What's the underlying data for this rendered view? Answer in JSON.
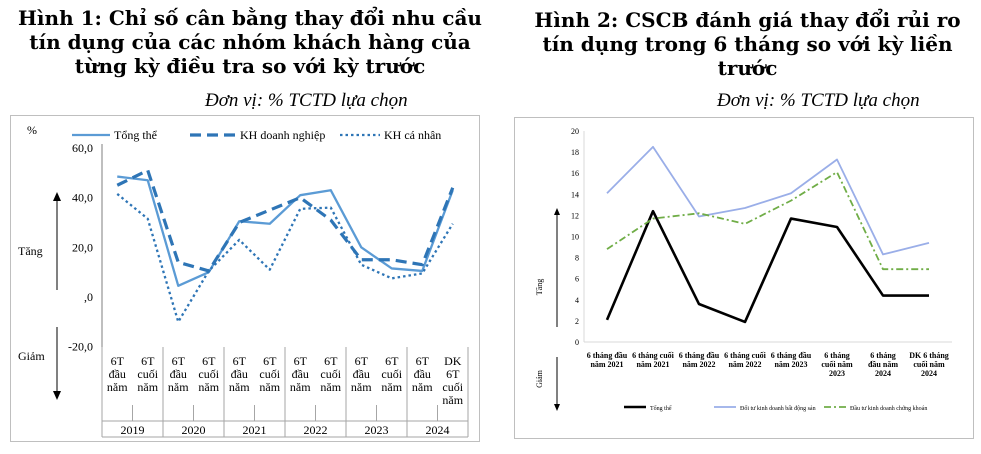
{
  "chart_data": [
    {
      "type": "line",
      "title": "Hình 1: Chỉ số cân bằng thay đổi nhu cầu tín dụng của các nhóm khách hàng của từng kỳ điều tra so với kỳ trước",
      "unit": "Đơn vị: % TCTD lựa chọn",
      "ylabel": "%",
      "ylim": [
        -20,
        60
      ],
      "yticks": [
        "60,0",
        "40,0",
        "20,0",
        ",0",
        "-20,0"
      ],
      "increase_label": "Tăng",
      "decrease_label": "Giảm",
      "period_labels": [
        "6T\nđầu\nnăm",
        "6T\ncuối\nnăm",
        "6T\nđầu\nnăm",
        "6T\ncuối\nnăm",
        "6T\nđầu\nnăm",
        "6T\ncuối\nnăm",
        "6T\nđầu\nnăm",
        "6T\ncuối\nnăm",
        "6T\nđầu\nnăm",
        "6T\ncuối\nnăm",
        "6T\nđầu\nnăm",
        "DK\n6T\ncuối\nnăm"
      ],
      "years": [
        "2019",
        "2020",
        "2021",
        "2022",
        "2023",
        "2024"
      ],
      "series": [
        {
          "name": "Tổng thể",
          "color": "#5b9bd5",
          "style": "solid",
          "values": [
            48.5,
            47,
            4.5,
            10,
            30.5,
            29.5,
            41,
            43,
            20,
            11.5,
            10.5,
            43
          ]
        },
        {
          "name": "KH doanh nghiệp",
          "color": "#2e75b6",
          "style": "dashed",
          "values": [
            45,
            51,
            14,
            10.5,
            30,
            35,
            40,
            31,
            15,
            15,
            13,
            44
          ]
        },
        {
          "name": "KH cá nhân",
          "color": "#2e75b6",
          "style": "dotted",
          "values": [
            41.5,
            31.5,
            -10,
            10.5,
            23,
            11,
            35.5,
            36,
            13,
            7.5,
            9.5,
            29.5
          ]
        }
      ]
    },
    {
      "type": "line",
      "title": "Hình 2: CSCB đánh giá thay đổi rủi ro tín dụng trong 6 tháng so với kỳ liền trước",
      "unit": "Đơn vị: % TCTD lựa chọn",
      "ylim": [
        0,
        20
      ],
      "yticks": [
        "20",
        "18",
        "16",
        "14",
        "12",
        "10",
        "8",
        "6",
        "4",
        "2",
        "0"
      ],
      "increase_label": "Tăng",
      "decrease_label": "Giảm",
      "categories": [
        "6 tháng đầu năm 2021",
        "6 tháng cuối năm 2021",
        "6 tháng đầu năm 2022",
        "6 tháng cuối năm 2022",
        "6 tháng đầu năm 2023",
        "6 tháng cuối năm 2023",
        "6 tháng đầu năm 2024",
        "DK 6 tháng cuối năm 2024"
      ],
      "category_lines": [
        [
          "6 tháng đầu",
          "năm 2021"
        ],
        [
          "6 tháng cuối",
          "năm 2021"
        ],
        [
          "6 tháng đầu",
          "năm 2022"
        ],
        [
          "6 tháng cuối",
          "năm 2022"
        ],
        [
          "6 tháng đầu",
          "năm 2023"
        ],
        [
          "6 tháng",
          "cuối năm",
          "2023"
        ],
        [
          "6 tháng",
          "đầu năm",
          "2024"
        ],
        [
          "DK 6 tháng",
          "cuối năm",
          "2024"
        ]
      ],
      "series": [
        {
          "name": "Tổng thể",
          "color": "#000000",
          "style": "solid",
          "values": [
            2.1,
            12.4,
            3.6,
            1.9,
            11.7,
            10.9,
            4.4,
            4.4
          ]
        },
        {
          "name": "Đối tư kinh doanh bất động sản",
          "color": "#9aaee8",
          "style": "solid",
          "values": [
            14.1,
            18.5,
            11.9,
            12.7,
            14.1,
            17.3,
            8.3,
            9.4
          ]
        },
        {
          "name": "Đầu tư kinh doanh chứng khoán",
          "color": "#70ad47",
          "style": "dashdot",
          "values": [
            8.8,
            11.7,
            12.2,
            11.2,
            13.4,
            16.1,
            6.9,
            6.9
          ]
        }
      ]
    }
  ]
}
